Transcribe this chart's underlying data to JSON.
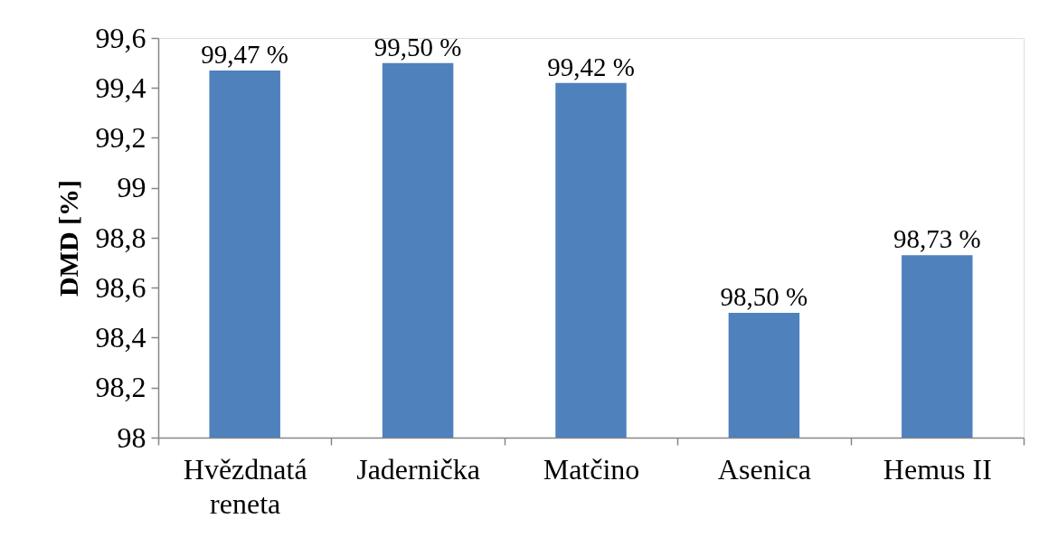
{
  "chart_data": {
    "type": "bar",
    "ylabel": "DMD [%]",
    "categories": [
      "Hvězdnatá reneta",
      "Jadernička",
      "Matčino",
      "Asenica",
      "Hemus II"
    ],
    "values": [
      99.47,
      99.5,
      99.42,
      98.5,
      98.73
    ],
    "value_labels": [
      "99,47 %",
      "99,50 %",
      "99,42 %",
      "98,50 %",
      "98,73 %"
    ],
    "color": "#4f81bd",
    "ylim": [
      98,
      99.6
    ],
    "yticks": [
      98,
      {
        "value": 98.2,
        "label": "98,2"
      },
      {
        "value": 98.4,
        "label": "98,4"
      },
      {
        "value": 98.6,
        "label": "98,6"
      },
      {
        "value": 98.8,
        "label": "98,8"
      },
      99,
      {
        "value": 99.2,
        "label": "99,2"
      },
      {
        "value": 99.4,
        "label": "99,4"
      },
      {
        "value": 99.6,
        "label": "99,6"
      }
    ],
    "grid": false
  }
}
